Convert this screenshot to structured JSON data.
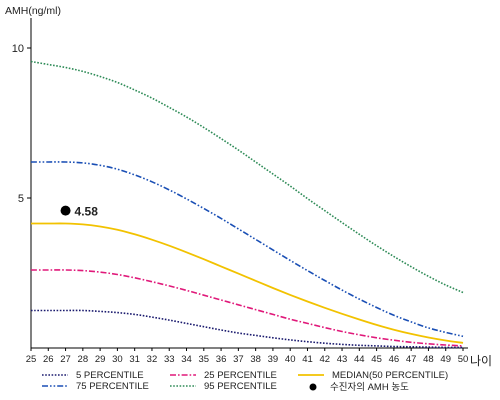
{
  "chart_data": {
    "type": "line",
    "ylabel": "AMH(ng/ml)",
    "xlabel": "나이",
    "x": [
      25,
      26,
      27,
      28,
      29,
      30,
      31,
      32,
      33,
      34,
      35,
      36,
      37,
      38,
      39,
      40,
      41,
      42,
      43,
      44,
      45,
      46,
      47,
      48,
      49,
      50
    ],
    "xlim": [
      25,
      50
    ],
    "ylim": [
      0,
      11
    ],
    "yticks": [
      5,
      10
    ],
    "grid": false,
    "legend_position": "bottom",
    "series": [
      {
        "name": "5 PERCENTILE",
        "color": "#1a1a6e",
        "style": "dotted",
        "values": [
          1.25,
          1.25,
          1.25,
          1.25,
          1.22,
          1.18,
          1.12,
          1.03,
          0.93,
          0.82,
          0.71,
          0.6,
          0.5,
          0.42,
          0.34,
          0.27,
          0.21,
          0.16,
          0.12,
          0.09,
          0.07,
          0.05,
          0.04,
          0.03,
          0.02,
          0.02
        ]
      },
      {
        "name": "25 PERCENTILE",
        "color": "#e0197a",
        "style": "dashdot",
        "values": [
          2.6,
          2.6,
          2.6,
          2.58,
          2.53,
          2.45,
          2.34,
          2.21,
          2.07,
          1.92,
          1.76,
          1.6,
          1.44,
          1.28,
          1.12,
          0.96,
          0.82,
          0.68,
          0.55,
          0.44,
          0.34,
          0.26,
          0.19,
          0.14,
          0.1,
          0.07
        ]
      },
      {
        "name": "MEDIAN(50 PERCENTILE)",
        "color": "#f2c200",
        "style": "solid",
        "values": [
          4.15,
          4.15,
          4.15,
          4.12,
          4.05,
          3.94,
          3.79,
          3.61,
          3.41,
          3.19,
          2.96,
          2.72,
          2.48,
          2.24,
          2.0,
          1.77,
          1.55,
          1.34,
          1.14,
          0.95,
          0.77,
          0.61,
          0.47,
          0.35,
          0.25,
          0.17
        ]
      },
      {
        "name": "75 PERCENTILE",
        "color": "#1a4fb5",
        "style": "dashdotdot",
        "values": [
          6.2,
          6.2,
          6.2,
          6.17,
          6.09,
          5.96,
          5.77,
          5.54,
          5.27,
          4.97,
          4.65,
          4.32,
          3.97,
          3.62,
          3.27,
          2.92,
          2.58,
          2.25,
          1.93,
          1.63,
          1.35,
          1.09,
          0.87,
          0.67,
          0.52,
          0.39
        ]
      },
      {
        "name": "95 PERCENTILE",
        "color": "#2e8b57",
        "style": "dotted",
        "values": [
          9.55,
          9.45,
          9.35,
          9.22,
          9.05,
          8.85,
          8.6,
          8.33,
          8.02,
          7.7,
          7.35,
          6.98,
          6.6,
          6.2,
          5.8,
          5.4,
          4.98,
          4.58,
          4.18,
          3.79,
          3.41,
          3.05,
          2.71,
          2.39,
          2.1,
          1.85
        ]
      }
    ],
    "point": {
      "name": "수진자의 AMH 농도",
      "x": 27,
      "y": 4.58,
      "label": "4.58",
      "color": "#000000"
    }
  }
}
